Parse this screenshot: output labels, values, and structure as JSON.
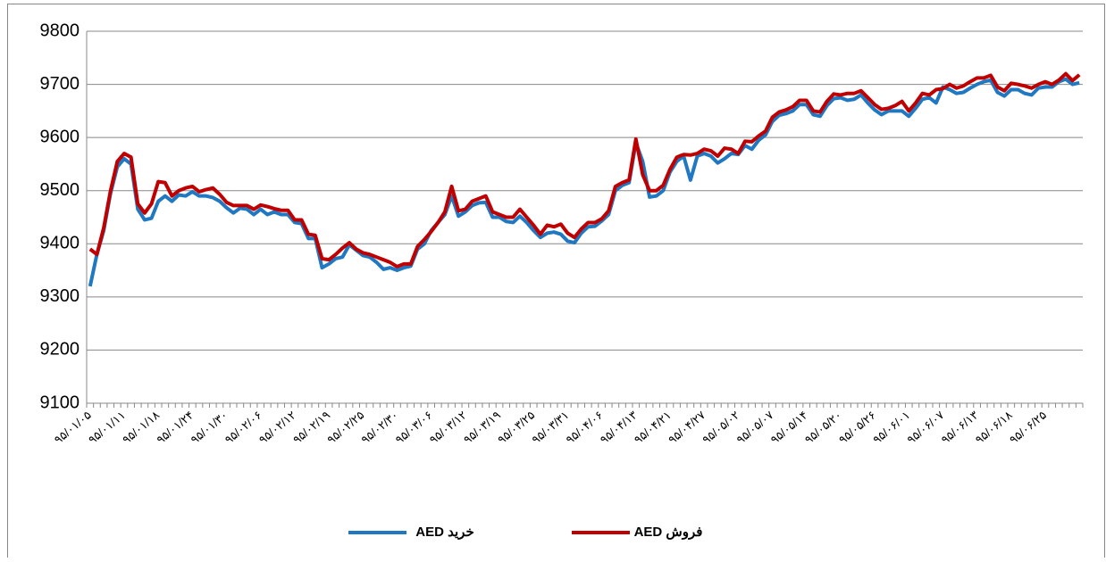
{
  "chart_data": {
    "type": "line",
    "categories": [
      "۹۵/۰۱/۰۵",
      null,
      null,
      null,
      null,
      "۹۵/۰۱/۱۱",
      null,
      null,
      null,
      null,
      "۹۵/۰۱/۱۸",
      null,
      null,
      null,
      null,
      "۹۵/۰۱/۲۴",
      null,
      null,
      null,
      null,
      "۹۵/۰۱/۳۰",
      null,
      null,
      null,
      null,
      "۹۵/۰۲/۰۶",
      null,
      null,
      null,
      null,
      "۹۵/۰۲/۱۲",
      null,
      null,
      null,
      null,
      "۹۵/۰۲/۱۹",
      null,
      null,
      null,
      null,
      "۹۵/۰۲/۲۵",
      null,
      null,
      null,
      null,
      "۹۵/۰۲/۳۰",
      null,
      null,
      null,
      null,
      "۹۵/۰۳/۰۶",
      null,
      null,
      null,
      null,
      "۹۵/۰۳/۱۲",
      null,
      null,
      null,
      null,
      "۹۵/۰۳/۱۹",
      null,
      null,
      null,
      null,
      "۹۵/۰۳/۲۵",
      null,
      null,
      null,
      null,
      "۹۵/۰۳/۳۱",
      null,
      null,
      null,
      null,
      "۹۵/۰۴/۰۶",
      null,
      null,
      null,
      null,
      "۹۵/۰۴/۱۳",
      null,
      null,
      null,
      null,
      "۹۵/۰۴/۲۱",
      null,
      null,
      null,
      null,
      "۹۵/۰۴/۲۷",
      null,
      null,
      null,
      null,
      "۹۵/۰۵/۰۲",
      null,
      null,
      null,
      null,
      "۹۵/۰۵/۰۷",
      null,
      null,
      null,
      null,
      "۹۵/۰۵/۱۴",
      null,
      null,
      null,
      null,
      "۹۵/۰۵/۲۰",
      null,
      null,
      null,
      null,
      "۹۵/۰۵/۲۶",
      null,
      null,
      null,
      null,
      "۹۵/۰۶/۰۱",
      null,
      null,
      null,
      null,
      "۹۵/۰۶/۰۷",
      null,
      null,
      null,
      null,
      "۹۵/۰۶/۱۳",
      null,
      null,
      null,
      null,
      "۹۵/۰۶/۱۸",
      null,
      null,
      null,
      null,
      "۹۵/۰۶/۲۵",
      null,
      null,
      null,
      null,
      null
    ],
    "series": [
      {
        "name": "خرید AED",
        "color": "#1f78c1",
        "values": [
          9320,
          9380,
          9425,
          9495,
          9545,
          9560,
          9550,
          9465,
          9445,
          9448,
          9480,
          9490,
          9480,
          9492,
          9490,
          9498,
          9490,
          9490,
          9487,
          9480,
          9468,
          9458,
          9467,
          9465,
          9455,
          9465,
          9455,
          9460,
          9455,
          9455,
          9440,
          9438,
          9410,
          9410,
          9355,
          9362,
          9372,
          9375,
          9398,
          9388,
          9378,
          9375,
          9365,
          9352,
          9355,
          9350,
          9355,
          9358,
          9390,
          9400,
          9425,
          9440,
          9455,
          9490,
          9452,
          9460,
          9472,
          9477,
          9478,
          9450,
          9450,
          9442,
          9440,
          9452,
          9440,
          9425,
          9412,
          9420,
          9422,
          9418,
          9405,
          9402,
          9420,
          9432,
          9433,
          9443,
          9455,
          9500,
          9510,
          9515,
          9590,
          9555,
          9488,
          9490,
          9500,
          9535,
          9555,
          9565,
          9520,
          9565,
          9570,
          9565,
          9552,
          9560,
          9570,
          9568,
          9585,
          9578,
          9595,
          9605,
          9630,
          9642,
          9645,
          9650,
          9662,
          9662,
          9643,
          9640,
          9660,
          9673,
          9675,
          9670,
          9672,
          9680,
          9665,
          9652,
          9643,
          9650,
          9650,
          9650,
          9640,
          9655,
          9672,
          9675,
          9665,
          9695,
          9690,
          9683,
          9685,
          9693,
          9700,
          9705,
          9708,
          9685,
          9678,
          9690,
          9690,
          9683,
          9680,
          9693,
          9695,
          9695,
          9705,
          9710,
          9700,
          9703
        ]
      },
      {
        "name": "فروش AED",
        "color": "#c00000",
        "values": [
          9390,
          9380,
          9430,
          9500,
          9555,
          9570,
          9563,
          9475,
          9458,
          9475,
          9517,
          9515,
          9490,
          9500,
          9505,
          9508,
          9498,
          9502,
          9505,
          9493,
          9478,
          9472,
          9472,
          9472,
          9465,
          9473,
          9470,
          9466,
          9463,
          9463,
          9445,
          9445,
          9418,
          9416,
          9372,
          9370,
          9380,
          9392,
          9402,
          9390,
          9383,
          9380,
          9375,
          9370,
          9365,
          9357,
          9362,
          9362,
          9395,
          9408,
          9423,
          9440,
          9460,
          9508,
          9462,
          9465,
          9480,
          9485,
          9490,
          9460,
          9455,
          9450,
          9450,
          9465,
          9450,
          9435,
          9418,
          9435,
          9432,
          9437,
          9420,
          9412,
          9428,
          9440,
          9440,
          9447,
          9462,
          9508,
          9515,
          9520,
          9597,
          9530,
          9500,
          9500,
          9510,
          9540,
          9563,
          9568,
          9567,
          9570,
          9578,
          9575,
          9565,
          9580,
          9578,
          9570,
          9593,
          9592,
          9603,
          9612,
          9638,
          9648,
          9652,
          9658,
          9670,
          9670,
          9650,
          9648,
          9668,
          9682,
          9680,
          9683,
          9683,
          9688,
          9675,
          9662,
          9653,
          9655,
          9660,
          9668,
          9650,
          9665,
          9683,
          9680,
          9690,
          9692,
          9700,
          9693,
          9697,
          9705,
          9712,
          9712,
          9717,
          9695,
          9688,
          9702,
          9700,
          9697,
          9693,
          9700,
          9705,
          9700,
          9708,
          9720,
          9707,
          9718
        ]
      }
    ],
    "ylim": [
      9100,
      9800
    ],
    "yticks": [
      9100,
      9200,
      9300,
      9400,
      9500,
      9600,
      9700,
      9800
    ],
    "grid": true,
    "legend": "bottom"
  }
}
